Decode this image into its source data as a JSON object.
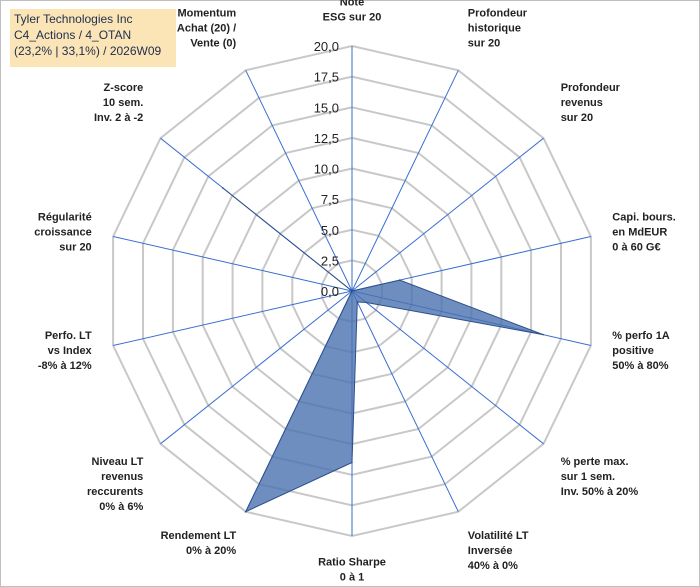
{
  "title_box": {
    "line1": "Tyler Technologies Inc",
    "line2": "C4_Actions / 4_OTAN",
    "line3": "(23,2% | 33,1%) / 2026W09",
    "background": "#fbe5b6"
  },
  "chart_data": {
    "type": "radar",
    "title": "Tyler Technologies Inc",
    "r_range": [
      0,
      20
    ],
    "tick_labels": [
      "0,0",
      "2,5",
      "5,0",
      "7,5",
      "10,0",
      "12,5",
      "15,0",
      "17,5",
      "20,0"
    ],
    "categories": [
      {
        "lines": [
          "Note",
          "ESG sur 20"
        ]
      },
      {
        "lines": [
          "Profondeur",
          "historique",
          "sur 20"
        ]
      },
      {
        "lines": [
          "Profondeur",
          "revenus",
          "sur 20"
        ]
      },
      {
        "lines": [
          "Capi. bours.",
          "en MdEUR",
          "0 à 60 G€"
        ]
      },
      {
        "lines": [
          "% perfo 1A",
          "positive",
          "50% à 80%"
        ]
      },
      {
        "lines": [
          "% perte max.",
          "sur 1 sem.",
          "Inv. 50% à 20%"
        ]
      },
      {
        "lines": [
          "Volatilité LT",
          "Inversée",
          "40% à 0%"
        ]
      },
      {
        "lines": [
          "Ratio Sharpe",
          "0 à 1"
        ]
      },
      {
        "lines": [
          "Rendement LT",
          "0% à 20%"
        ]
      },
      {
        "lines": [
          "Niveau LT",
          "revenus",
          "reccurents",
          "0% à 6%"
        ]
      },
      {
        "lines": [
          "Perfo. LT",
          "vs Index",
          "-8% à 12%"
        ]
      },
      {
        "lines": [
          "Régularité",
          "croissance",
          "sur 20"
        ]
      },
      {
        "lines": [
          "Z-score",
          "10 sem.",
          "Inv. 2 à -2"
        ]
      },
      {
        "lines": [
          "Momentum",
          "Achat (20) /",
          "Vente (0)"
        ]
      }
    ],
    "series": [
      {
        "name": "Tyler Technologies Inc",
        "values": [
          0,
          0,
          0,
          4.0,
          16.0,
          1.5,
          1.0,
          14.0,
          20.0,
          0,
          0,
          0,
          13.5,
          0
        ],
        "fill": "#4a72b0",
        "fill_opacity": 0.8,
        "stroke": "#2e4f8a"
      }
    ],
    "grid": true,
    "grid_color": "#c8c8c8",
    "spoke_color": "#3a6fcf"
  }
}
